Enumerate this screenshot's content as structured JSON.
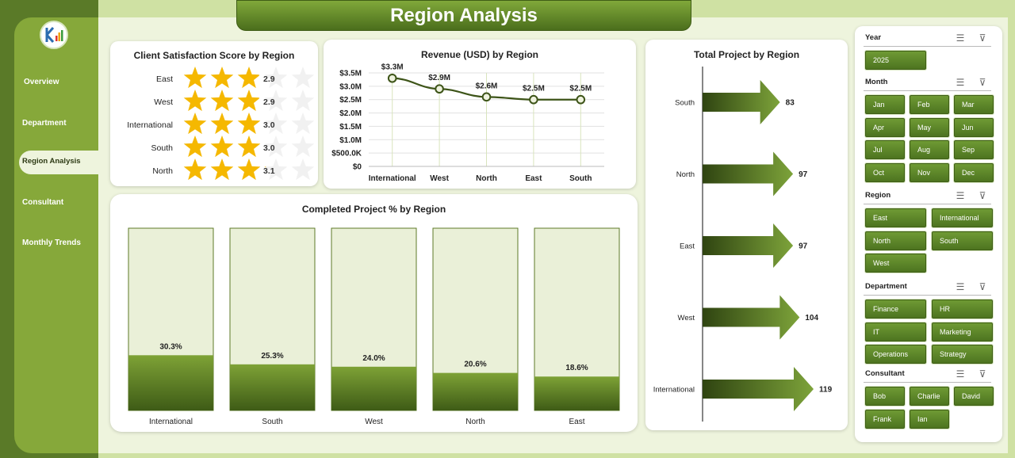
{
  "page_title": "Region Analysis",
  "nav": {
    "items": [
      {
        "label": "Overview"
      },
      {
        "label": "Department"
      },
      {
        "label": "Region Analysis"
      },
      {
        "label": "Consultant"
      },
      {
        "label": "Monthly Trends"
      }
    ],
    "active": "Region Analysis"
  },
  "colors": {
    "dark_green": "#4b6e1c",
    "mid_green": "#86a83a",
    "star": "#f5b800",
    "pale_bg": "#eef4dd"
  },
  "cards": {
    "satisfaction_title": "Client Satisfaction Score by Region",
    "revenue_title": "Revenue (USD) by Region",
    "completed_title": "Completed Project % by Region",
    "projects_title": "Total Project by Region"
  },
  "slicers": {
    "year": {
      "title": "Year",
      "items": [
        "2025"
      ]
    },
    "month": {
      "title": "Month",
      "items": [
        "Jan",
        "Feb",
        "Mar",
        "Apr",
        "May",
        "Jun",
        "Jul",
        "Aug",
        "Sep",
        "Oct",
        "Nov",
        "Dec"
      ]
    },
    "region": {
      "title": "Region",
      "items": [
        "East",
        "International",
        "North",
        "South",
        "West"
      ]
    },
    "department": {
      "title": "Department",
      "items": [
        "Finance",
        "HR",
        "IT",
        "Marketing",
        "Operations",
        "Strategy"
      ]
    },
    "consultant": {
      "title": "Consultant",
      "items": [
        "Bob",
        "Charlie",
        "David",
        "Frank",
        "Ian"
      ]
    }
  },
  "chart_data": [
    {
      "type": "bar",
      "title": "Client Satisfaction Score by Region",
      "encoding": "star rating out of 5",
      "categories": [
        "East",
        "West",
        "International",
        "South",
        "North"
      ],
      "values": [
        2.9,
        2.9,
        3.0,
        3.0,
        3.1
      ],
      "labels": [
        "2.9",
        "2.9",
        "3.0",
        "3.0",
        "3.1"
      ],
      "max": 5
    },
    {
      "type": "line",
      "title": "Revenue (USD) by Region",
      "categories": [
        "International",
        "West",
        "North",
        "East",
        "South"
      ],
      "values": [
        3.3,
        2.9,
        2.6,
        2.5,
        2.5
      ],
      "labels": [
        "$3.3M",
        "$2.9M",
        "$2.6M",
        "$2.5M",
        "$2.5M"
      ],
      "y_ticks": [
        "$0",
        "$500.0K",
        "$1.0M",
        "$1.5M",
        "$2.0M",
        "$2.5M",
        "$3.0M",
        "$3.5M"
      ],
      "ylim": [
        0,
        3.5
      ],
      "y_unit": "million USD",
      "grid": true
    },
    {
      "type": "bar",
      "title": "Completed Project % by Region",
      "categories": [
        "International",
        "South",
        "West",
        "North",
        "East"
      ],
      "values": [
        30.3,
        25.3,
        24.0,
        20.6,
        18.6
      ],
      "labels": [
        "30.3%",
        "25.3%",
        "24.0%",
        "20.6%",
        "18.6%"
      ],
      "ylim": [
        0,
        100
      ]
    },
    {
      "type": "bar",
      "title": "Total Project by Region",
      "orientation": "horizontal",
      "encoding": "arrow length",
      "categories": [
        "South",
        "North",
        "East",
        "West",
        "International"
      ],
      "values": [
        83,
        97,
        97,
        104,
        119
      ],
      "labels": [
        "83",
        "97",
        "97",
        "104",
        "119"
      ]
    }
  ]
}
